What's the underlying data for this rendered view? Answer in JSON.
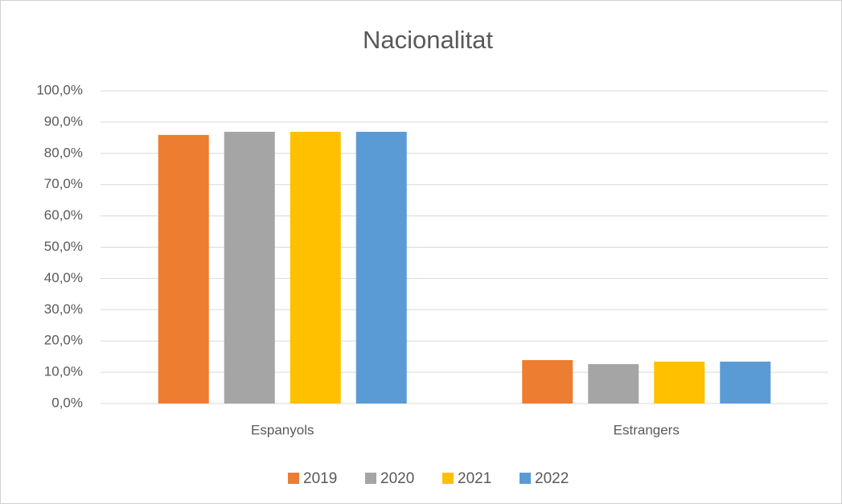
{
  "chart_data": {
    "type": "bar",
    "title": "Nacionalitat",
    "categories": [
      "Espanyols",
      "Estrangers"
    ],
    "series": [
      {
        "name": "2019",
        "color": "#ed7d31",
        "values": [
          85.9,
          13.9
        ]
      },
      {
        "name": "2020",
        "color": "#a5a5a5",
        "values": [
          86.9,
          12.6
        ]
      },
      {
        "name": "2021",
        "color": "#ffc000",
        "values": [
          86.9,
          13.4
        ]
      },
      {
        "name": "2022",
        "color": "#5b9bd5",
        "values": [
          86.9,
          13.4
        ]
      }
    ],
    "ylim": [
      0,
      100
    ],
    "yticks": [
      {
        "value": 0,
        "label": "0,0%"
      },
      {
        "value": 10,
        "label": "10,0%"
      },
      {
        "value": 20,
        "label": "20,0%"
      },
      {
        "value": 30,
        "label": "30,0%"
      },
      {
        "value": 40,
        "label": "40,0%"
      },
      {
        "value": 50,
        "label": "50,0%"
      },
      {
        "value": 60,
        "label": "60,0%"
      },
      {
        "value": 70,
        "label": "70,0%"
      },
      {
        "value": 80,
        "label": "80,0%"
      },
      {
        "value": 90,
        "label": "90,0%"
      },
      {
        "value": 100,
        "label": "100,0%"
      }
    ],
    "grid": true,
    "legend": "bottom"
  }
}
